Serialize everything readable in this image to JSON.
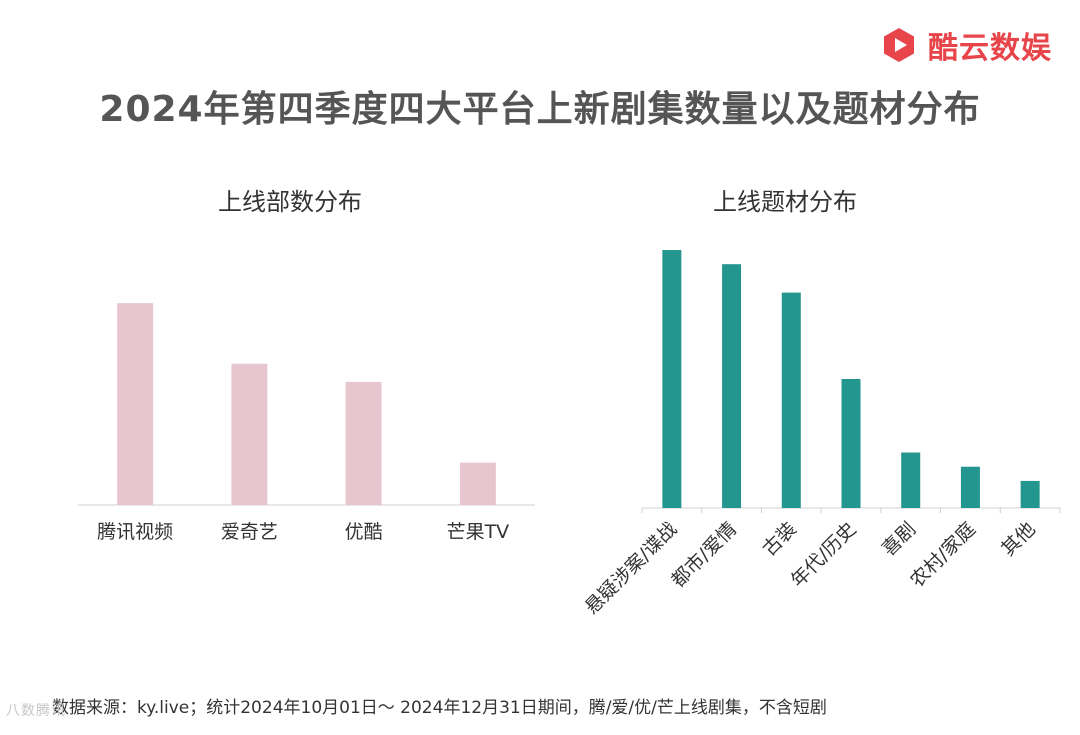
{
  "brand": {
    "name": "酷云数娱",
    "color": "#e8454b"
  },
  "title": "2024年第四季度四大平台上新剧集数量以及题材分布",
  "footnote": "数据来源：ky.live；统计2024年10月01日～ 2024年12月31日期间，腾/爱/优/芒上线剧集，不含短剧",
  "watermark": "八数腾讯",
  "chart_data": [
    {
      "type": "bar",
      "title": "上线部数分布",
      "categories": [
        "腾讯视频",
        "爱奇艺",
        "优酷",
        "芒果TV"
      ],
      "values": [
        100,
        70,
        61,
        21
      ],
      "color": "#e8c6cf",
      "ylim": [
        0,
        110
      ],
      "grid": false,
      "axis_values_shown": false
    },
    {
      "type": "bar",
      "title": "上线题材分布",
      "categories": [
        "悬疑涉案/谍战",
        "都市/爱情",
        "古装",
        "年代/历史",
        "喜剧",
        "农村/家庭",
        "其他"
      ],
      "values": [
        100,
        94.5,
        83.5,
        50,
        21.5,
        16,
        10.5
      ],
      "color": "#22968f",
      "ylim": [
        0,
        100
      ],
      "grid": false,
      "axis_values_shown": false,
      "tick_label_rotation": -45
    }
  ]
}
